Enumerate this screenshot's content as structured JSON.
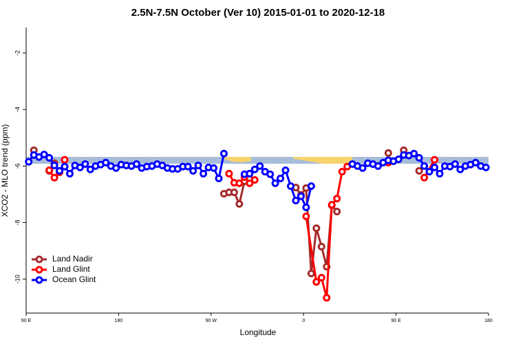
{
  "chart_data": {
    "type": "line",
    "title": "2.5N-7.5N October (Ver 10)   2015-01-01 to 2020-12-18",
    "xlabel": "Longitude",
    "ylabel": "XCO2 - MLO trend (ppm)",
    "xlim": [
      90,
      540
    ],
    "ylim": [
      -11.2,
      -1.1
    ],
    "xticks": [
      {
        "value": 90,
        "label": "90 E"
      },
      {
        "value": 180,
        "label": "180"
      },
      {
        "value": 270,
        "label": "90 W"
      },
      {
        "value": 360,
        "label": "0"
      },
      {
        "value": 450,
        "label": "90 E"
      },
      {
        "value": 540,
        "label": "180"
      }
    ],
    "yticks": [
      -2,
      -4,
      -6,
      -8,
      -10
    ],
    "legend": "bottom-left",
    "series": [
      {
        "name": "Land Nadir",
        "color": "#a52a2a",
        "x": [
          97.5,
          null,
          112.5,
          117.5,
          122.5,
          null,
          282.5,
          287.5,
          292.5,
          297.5,
          302.5,
          307.5,
          null,
          352.5,
          357.5,
          362.5,
          367.5,
          372.5,
          377.5,
          382.5,
          387.5,
          392.5,
          null,
          442.5,
          null,
          457.5,
          null,
          472.5
        ],
        "values": [
          -5.44,
          null,
          -6.17,
          -5.9,
          -6.22,
          null,
          -6.98,
          -6.93,
          -6.93,
          -7.34,
          -6.54,
          -6.46,
          null,
          -6.76,
          -7.02,
          -6.78,
          -9.8,
          -8.2,
          -8.85,
          -9.56,
          -7.39,
          -7.61,
          null,
          -5.54,
          null,
          -5.44,
          null,
          -6.17
        ]
      },
      {
        "name": "Land Glint",
        "color": "#ff0000",
        "x": [
          112.5,
          117.5,
          122.5,
          127.5,
          null,
          287.5,
          292.5,
          297.5,
          302.5,
          307.5,
          312.5,
          null,
          362.5,
          372.5,
          377.5,
          382.5,
          387.5,
          392.5,
          397.5,
          402.5,
          null,
          442.5,
          null,
          477.5,
          487.5
        ],
        "values": [
          -6.15,
          -6.41,
          -6.22,
          -5.78,
          null,
          -6.27,
          -6.59,
          -6.61,
          -6.39,
          -6.61,
          -6.49,
          null,
          -7.78,
          -10.1,
          -9.95,
          -10.66,
          -7.37,
          -7.15,
          -6.2,
          -6.02,
          null,
          -5.88,
          null,
          -6.41,
          -5.78
        ]
      },
      {
        "name": "Ocean Glint",
        "color": "#0000ff",
        "x": [
          92.5,
          97.5,
          102.5,
          107.5,
          112.5,
          117.5,
          122.5,
          127.5,
          132.5,
          137.5,
          142.5,
          147.5,
          152.5,
          157.5,
          162.5,
          167.5,
          172.5,
          177.5,
          182.5,
          187.5,
          192.5,
          197.5,
          202.5,
          207.5,
          212.5,
          217.5,
          222.5,
          227.5,
          232.5,
          237.5,
          242.5,
          247.5,
          252.5,
          257.5,
          262.5,
          267.5,
          272.5,
          277.5,
          282.5,
          null,
          302.5,
          307.5,
          312.5,
          317.5,
          322.5,
          327.5,
          332.5,
          337.5,
          342.5,
          347.5,
          352.5,
          357.5,
          362.5,
          367.5,
          null,
          407.5,
          412.5,
          417.5,
          422.5,
          427.5,
          432.5,
          437.5,
          442.5,
          447.5,
          452.5,
          457.5,
          462.5,
          467.5,
          472.5,
          477.5,
          482.5,
          487.5,
          492.5,
          497.5,
          502.5,
          507.5,
          512.5,
          517.5,
          522.5,
          527.5,
          532.5,
          537.5
        ],
        "values": [
          -5.85,
          -5.61,
          -5.68,
          -5.59,
          -5.71,
          -5.98,
          -6.17,
          -6.02,
          -6.27,
          -5.98,
          -6.05,
          -5.93,
          -6.12,
          -6.0,
          -5.95,
          -5.88,
          -6.0,
          -6.07,
          -5.95,
          -5.98,
          -6.0,
          -5.93,
          -6.07,
          -6.02,
          -6.0,
          -5.93,
          -5.98,
          -6.07,
          -6.1,
          -6.1,
          -6.02,
          -6.02,
          -6.17,
          -5.98,
          -6.27,
          -6.05,
          -6.07,
          -6.44,
          -5.56,
          null,
          -6.29,
          -6.27,
          -6.12,
          -6.0,
          -6.2,
          -6.29,
          -6.61,
          -6.44,
          -6.15,
          -6.71,
          -7.22,
          -7.07,
          -7.46,
          -6.71,
          null,
          -5.93,
          -6.0,
          -6.07,
          -5.9,
          -5.93,
          -6.0,
          -5.88,
          -5.8,
          -5.83,
          -5.76,
          -5.61,
          -5.63,
          -5.56,
          -5.71,
          -6.0,
          -6.2,
          -6.05,
          -6.27,
          -6.0,
          -6.02,
          -5.93,
          -6.12,
          -6.0,
          -5.95,
          -5.88,
          -6.0,
          -6.05
        ]
      }
    ]
  }
}
